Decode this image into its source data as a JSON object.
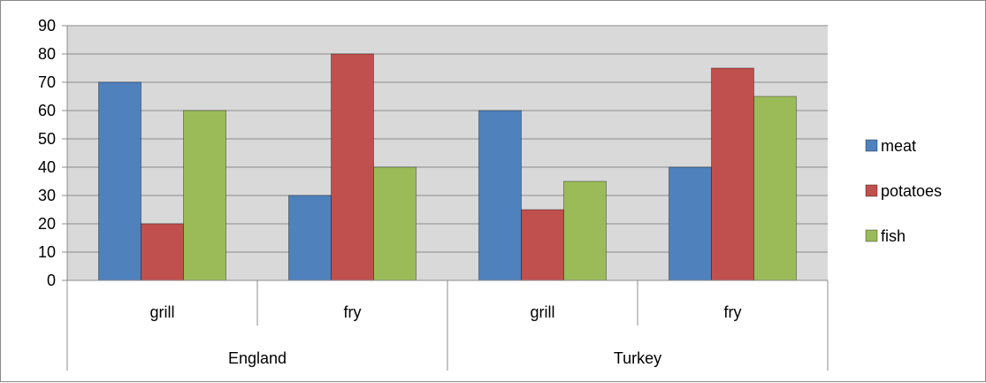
{
  "chart_data": {
    "type": "bar",
    "groups": [
      {
        "label": "England",
        "categories": [
          "grill",
          "fry"
        ]
      },
      {
        "label": "Turkey",
        "categories": [
          "grill",
          "fry"
        ]
      }
    ],
    "categories": [
      "grill",
      "fry",
      "grill",
      "fry"
    ],
    "series": [
      {
        "name": "meat",
        "color": "#4f81bd",
        "values": [
          70,
          30,
          60,
          40
        ]
      },
      {
        "name": "potatoes",
        "color": "#c0504d",
        "values": [
          20,
          80,
          25,
          75
        ]
      },
      {
        "name": "fish",
        "color": "#9bbb59",
        "values": [
          60,
          40,
          35,
          65
        ]
      }
    ],
    "ylim": [
      0,
      90
    ],
    "yticks": [
      0,
      10,
      20,
      30,
      40,
      50,
      60,
      70,
      80,
      90
    ],
    "grid": true,
    "legend_position": "right",
    "plot_background": "#d9d9d9"
  }
}
